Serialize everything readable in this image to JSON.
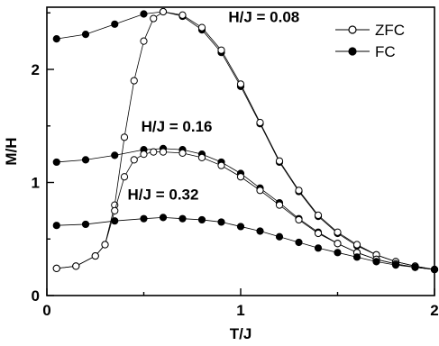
{
  "chart_data": {
    "type": "scatter",
    "xlabel": "T/J",
    "ylabel": "M/H",
    "xlim": [
      0,
      2
    ],
    "ylim": [
      0,
      2.55
    ],
    "x_ticks": [
      0,
      1,
      2
    ],
    "y_ticks": [
      0,
      1,
      2
    ],
    "x_tick_labels": [
      "0",
      "1",
      "2"
    ],
    "y_tick_labels": [
      "0",
      "1",
      "2"
    ],
    "grid": false,
    "legend_position": "top-right",
    "legend": [
      {
        "name": "ZFC",
        "marker": "open-circle"
      },
      {
        "name": "FC",
        "marker": "filled-circle"
      }
    ],
    "annotations": [
      {
        "text": "H/J = 0.08",
        "x": 1.12,
        "y": 2.42
      },
      {
        "text": "H/J = 0.16",
        "x": 0.67,
        "y": 1.45
      },
      {
        "text": "H/J = 0.32",
        "x": 0.6,
        "y": 0.85
      }
    ],
    "series": [
      {
        "marker": "filled-circle",
        "x": [
          0.05,
          0.2,
          0.35,
          0.5,
          0.6,
          0.7,
          0.8,
          0.9,
          1.0,
          1.1,
          1.2,
          1.3,
          1.4,
          1.5,
          1.6,
          1.7,
          1.8,
          1.9,
          2.0
        ],
        "y": [
          2.27,
          2.31,
          2.4,
          2.49,
          2.51,
          2.47,
          2.35,
          2.15,
          1.85,
          1.52,
          1.18,
          0.92,
          0.7,
          0.55,
          0.44,
          0.36,
          0.3,
          0.26,
          0.23
        ]
      },
      {
        "marker": "open-circle",
        "x": [
          0.05,
          0.15,
          0.25,
          0.3,
          0.35,
          0.4,
          0.45,
          0.5,
          0.55,
          0.6,
          0.7,
          0.8,
          0.9,
          1.0,
          1.1,
          1.2,
          1.3,
          1.4,
          1.5,
          1.6,
          1.7,
          1.8,
          1.9,
          2.0
        ],
        "y": [
          0.24,
          0.26,
          0.35,
          0.45,
          0.8,
          1.4,
          1.9,
          2.25,
          2.45,
          2.51,
          2.48,
          2.37,
          2.17,
          1.87,
          1.53,
          1.19,
          0.93,
          0.71,
          0.56,
          0.45,
          0.36,
          0.3,
          0.26,
          0.23
        ]
      },
      {
        "marker": "filled-circle",
        "x": [
          0.05,
          0.2,
          0.35,
          0.5,
          0.6,
          0.7,
          0.8,
          0.9,
          1.0,
          1.1,
          1.2,
          1.3,
          1.4,
          1.5,
          1.6,
          1.7,
          1.8,
          1.9,
          2.0
        ],
        "y": [
          1.18,
          1.2,
          1.24,
          1.29,
          1.3,
          1.29,
          1.25,
          1.18,
          1.08,
          0.95,
          0.82,
          0.68,
          0.56,
          0.46,
          0.38,
          0.32,
          0.28,
          0.25,
          0.23
        ]
      },
      {
        "marker": "open-circle",
        "x": [
          0.05,
          0.15,
          0.25,
          0.3,
          0.35,
          0.4,
          0.45,
          0.5,
          0.55,
          0.6,
          0.7,
          0.8,
          0.9,
          1.0,
          1.1,
          1.2,
          1.3,
          1.4,
          1.5,
          1.6,
          1.7,
          1.8,
          1.9,
          2.0
        ],
        "y": [
          0.24,
          0.26,
          0.35,
          0.45,
          0.75,
          1.05,
          1.2,
          1.25,
          1.27,
          1.27,
          1.26,
          1.22,
          1.15,
          1.05,
          0.93,
          0.8,
          0.67,
          0.55,
          0.46,
          0.38,
          0.32,
          0.28,
          0.25,
          0.23
        ]
      },
      {
        "marker": "filled-circle",
        "x": [
          0.05,
          0.2,
          0.35,
          0.5,
          0.6,
          0.7,
          0.8,
          0.9,
          1.0,
          1.1,
          1.2,
          1.3,
          1.4,
          1.5,
          1.6,
          1.7,
          1.8,
          1.9,
          2.0
        ],
        "y": [
          0.62,
          0.63,
          0.66,
          0.68,
          0.69,
          0.68,
          0.67,
          0.65,
          0.61,
          0.57,
          0.52,
          0.47,
          0.42,
          0.38,
          0.34,
          0.3,
          0.27,
          0.25,
          0.23
        ]
      }
    ]
  }
}
